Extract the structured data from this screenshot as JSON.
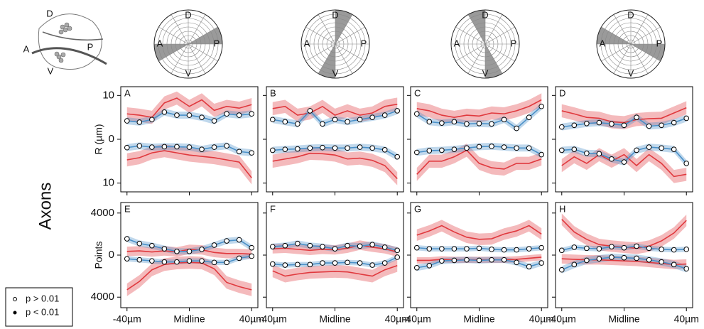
{
  "row_label": "Axons",
  "legend": [
    "p > 0.01",
    "p < 0.01"
  ],
  "inset": {
    "labels": [
      "D",
      "A",
      "P",
      "V"
    ]
  },
  "chart_data": [
    {
      "type": "polar",
      "labels": {
        "top": "D",
        "left": "A",
        "right": "P",
        "bottom": "V"
      },
      "shaded": [
        [
          0,
          30
        ],
        [
          180,
          210
        ]
      ],
      "color": "#9a9a9a"
    },
    {
      "type": "polar",
      "labels": {
        "top": "D",
        "left": "A",
        "right": "P",
        "bottom": "V"
      },
      "shaded": [
        [
          60,
          90
        ],
        [
          240,
          270
        ]
      ],
      "color": "#9a9a9a"
    },
    {
      "type": "polar",
      "labels": {
        "top": "D",
        "left": "A",
        "right": "P",
        "bottom": "V"
      },
      "shaded": [
        [
          90,
          120
        ],
        [
          270,
          300
        ]
      ],
      "color": "#9a9a9a"
    },
    {
      "type": "polar",
      "labels": {
        "top": "D",
        "left": "A",
        "right": "P",
        "bottom": "V"
      },
      "shaded": [
        [
          150,
          180
        ],
        [
          330,
          360
        ]
      ],
      "color": "#9a9a9a"
    },
    {
      "type": "line",
      "label": "A",
      "ylabel": "R (µm)",
      "ylim": [
        -12,
        12
      ],
      "yticks": [
        10,
        0,
        {
          "value": -10,
          "label": "10"
        }
      ],
      "xlim": [
        -44,
        44
      ],
      "x": [
        -40,
        -32,
        -24,
        -16,
        -8,
        0,
        8,
        16,
        24,
        32,
        40
      ],
      "series": [
        {
          "color": "#e0393e",
          "error": 1.5,
          "values": [
            5.8,
            5.5,
            5,
            8.3,
            9.4,
            7.5,
            9,
            6.6,
            7.5,
            7.1,
            7.9
          ]
        },
        {
          "color": "#4a90c8",
          "error": 0.8,
          "markers": true,
          "values": [
            4.2,
            3.9,
            4.5,
            6.2,
            5.5,
            5.5,
            5,
            4.2,
            5.8,
            5.5,
            5.8
          ]
        },
        {
          "color": "#e0393e",
          "error": 1.5,
          "values": [
            -4.7,
            -4.2,
            -3.1,
            -2.6,
            -3.1,
            -3.6,
            -3.9,
            -4.2,
            -4.7,
            -5.2,
            -8.8
          ]
        },
        {
          "color": "#4a90c8",
          "error": 0.8,
          "markers": true,
          "values": [
            -1.9,
            -1.5,
            -1.8,
            -1.7,
            -1.7,
            -1.8,
            -2.3,
            -1.8,
            -1.5,
            -2.8,
            -3.1
          ]
        }
      ]
    },
    {
      "type": "line",
      "label": "B",
      "ylim": [
        -12,
        12
      ],
      "xlim": [
        -44,
        44
      ],
      "x": [
        -40,
        -32,
        -24,
        -16,
        -8,
        0,
        8,
        16,
        24,
        32,
        40
      ],
      "series": [
        {
          "color": "#e0393e",
          "error": 1.5,
          "values": [
            7,
            7.5,
            5.5,
            6,
            7.5,
            5.5,
            6.5,
            5.5,
            6,
            7.5,
            8
          ]
        },
        {
          "color": "#4a90c8",
          "error": 0.8,
          "markers": true,
          "values": [
            4.5,
            4,
            3.5,
            6.5,
            3.5,
            4.5,
            4,
            4.5,
            5,
            5.5,
            6.5
          ]
        },
        {
          "color": "#e0393e",
          "error": 1.5,
          "values": [
            -5,
            -4.5,
            -4,
            -3.2,
            -3.3,
            -3.6,
            -4.5,
            -4.3,
            -4.8,
            -6,
            -9
          ]
        },
        {
          "color": "#4a90c8",
          "error": 0.8,
          "markers": true,
          "values": [
            -2.5,
            -2.3,
            -2.2,
            -2,
            -1.9,
            -2,
            -2,
            -1.8,
            -2,
            -2.4,
            -4
          ]
        }
      ]
    },
    {
      "type": "line",
      "label": "C",
      "ylim": [
        -12,
        12
      ],
      "xlim": [
        -44,
        44
      ],
      "x": [
        -40,
        -32,
        -24,
        -16,
        -8,
        0,
        8,
        16,
        24,
        32,
        40
      ],
      "series": [
        {
          "color": "#e0393e",
          "error": 1.5,
          "values": [
            7,
            6.5,
            5.5,
            5,
            5.5,
            5.3,
            6,
            5.8,
            6.5,
            7.5,
            9
          ]
        },
        {
          "color": "#4a90c8",
          "error": 0.8,
          "markers": true,
          "values": [
            5.8,
            4,
            3.7,
            4,
            3.5,
            3.6,
            3.5,
            4.5,
            2.5,
            5,
            7.5
          ]
        },
        {
          "color": "#e0393e",
          "error": 1.5,
          "values": [
            -8,
            -5,
            -5,
            -4,
            -2.5,
            -5.5,
            -6.5,
            -6.8,
            -5.5,
            -5.5,
            -4.5
          ]
        },
        {
          "color": "#4a90c8",
          "error": 0.8,
          "markers": true,
          "values": [
            -3,
            -2.6,
            -2.5,
            -2.3,
            -2,
            -1.7,
            -1.6,
            -1.8,
            -2,
            -2,
            -3.5
          ]
        }
      ]
    },
    {
      "type": "line",
      "label": "D",
      "ylim": [
        -12,
        12
      ],
      "xlim": [
        -44,
        44
      ],
      "x": [
        -40,
        -32,
        -24,
        -16,
        -8,
        0,
        8,
        16,
        24,
        32,
        40
      ],
      "series": [
        {
          "color": "#e0393e",
          "error": 1.5,
          "values": [
            6.5,
            5.8,
            5,
            4.8,
            4,
            3.8,
            4.5,
            4.7,
            4.8,
            6,
            7.2
          ]
        },
        {
          "color": "#4a90c8",
          "error": 0.8,
          "markers": true,
          "values": [
            2.8,
            3.2,
            3.6,
            3.8,
            3.5,
            3.2,
            5,
            3,
            3.2,
            3.8,
            4.8
          ]
        },
        {
          "color": "#e0393e",
          "error": 1.5,
          "values": [
            -6,
            -4,
            -5.5,
            -3.5,
            -5,
            -3.5,
            -6,
            -3.5,
            -5.5,
            -8.5,
            -8
          ]
        },
        {
          "color": "#4a90c8",
          "error": 0.8,
          "markers": true,
          "values": [
            -2.5,
            -2.3,
            -3.2,
            -3.3,
            -4.5,
            -5.2,
            -2.5,
            -1.8,
            -2,
            -2.3,
            -5.5
          ]
        }
      ]
    },
    {
      "type": "line",
      "label": "E",
      "ylabel": "Points",
      "ylim": [
        -5000,
        5000
      ],
      "yticks": [
        4000,
        0,
        {
          "value": -4000,
          "label": "4000"
        }
      ],
      "xlim": [
        -44,
        44
      ],
      "xticks": [
        {
          "value": -40,
          "label": "-40µm"
        },
        {
          "value": 0,
          "label": "Midline"
        },
        {
          "value": 40,
          "label": "40µm"
        }
      ],
      "x": [
        -40,
        -32,
        -24,
        -16,
        -8,
        0,
        8,
        16,
        24,
        32,
        40
      ],
      "series": [
        {
          "color": "#e0393e",
          "error": 450,
          "values": [
            350,
            400,
            300,
            400,
            300,
            550,
            500,
            250,
            150,
            150,
            100
          ]
        },
        {
          "color": "#4a90c8",
          "error": 300,
          "markers": true,
          "values": [
            1550,
            1100,
            900,
            600,
            350,
            350,
            550,
            950,
            1350,
            1450,
            700
          ]
        },
        {
          "color": "#e0393e",
          "error": 600,
          "values": [
            -3300,
            -2500,
            -1400,
            -900,
            -750,
            -700,
            -750,
            -1300,
            -2600,
            -3000,
            -3300
          ]
        },
        {
          "color": "#4a90c8",
          "error": 250,
          "markers": true,
          "values": [
            -350,
            -450,
            -550,
            -650,
            -650,
            -550,
            -550,
            -700,
            -700,
            -300,
            -100
          ]
        }
      ]
    },
    {
      "type": "line",
      "label": "F",
      "ylim": [
        -5000,
        5000
      ],
      "xlim": [
        -44,
        44
      ],
      "xticks": [
        {
          "value": -40,
          "label": "-40µm"
        },
        {
          "value": 0,
          "label": "Midline"
        },
        {
          "value": 40,
          "label": "40µm"
        }
      ],
      "x": [
        -40,
        -32,
        -24,
        -16,
        -8,
        0,
        8,
        16,
        24,
        32,
        40
      ],
      "series": [
        {
          "color": "#e0393e",
          "error": 450,
          "values": [
            600,
            650,
            550,
            450,
            550,
            500,
            650,
            950,
            750,
            600,
            300
          ]
        },
        {
          "color": "#4a90c8",
          "error": 300,
          "markers": true,
          "values": [
            800,
            900,
            1100,
            900,
            800,
            600,
            900,
            850,
            1000,
            750,
            450
          ]
        },
        {
          "color": "#e0393e",
          "error": 600,
          "values": [
            -1500,
            -2000,
            -1800,
            -1650,
            -1600,
            -1550,
            -1600,
            -1800,
            -2000,
            -1400,
            -1000
          ]
        },
        {
          "color": "#4a90c8",
          "error": 250,
          "markers": true,
          "values": [
            -850,
            -950,
            -900,
            -900,
            -750,
            -750,
            -700,
            -750,
            -950,
            -750,
            -200
          ]
        }
      ]
    },
    {
      "type": "line",
      "label": "G",
      "ylim": [
        -5000,
        5000
      ],
      "xlim": [
        -44,
        44
      ],
      "xticks": [
        {
          "value": -40,
          "label": "-40µm"
        },
        {
          "value": 0,
          "label": "Midline"
        },
        {
          "value": 40,
          "label": "40µm"
        }
      ],
      "x": [
        -40,
        -32,
        -24,
        -16,
        -8,
        0,
        8,
        16,
        24,
        32,
        40
      ],
      "series": [
        {
          "color": "#e0393e",
          "error": 550,
          "values": [
            1900,
            2300,
            2800,
            2200,
            1700,
            1500,
            1550,
            2000,
            2300,
            2800,
            2000
          ]
        },
        {
          "color": "#4a90c8",
          "error": 250,
          "markers": true,
          "values": [
            700,
            600,
            600,
            600,
            600,
            650,
            550,
            500,
            500,
            600,
            700
          ]
        },
        {
          "color": "#e0393e",
          "error": 300,
          "values": [
            -500,
            -500,
            -400,
            -450,
            -450,
            -450,
            -450,
            -450,
            -400,
            -300,
            -200
          ]
        },
        {
          "color": "#4a90c8",
          "error": 300,
          "markers": true,
          "values": [
            -1200,
            -1000,
            -550,
            -500,
            -450,
            -500,
            -450,
            -450,
            -700,
            -1100,
            -750
          ]
        }
      ]
    },
    {
      "type": "line",
      "label": "H",
      "ylim": [
        -5000,
        5000
      ],
      "xlim": [
        -44,
        44
      ],
      "xticks": [
        {
          "value": -40,
          "label": "-40µm"
        },
        {
          "value": 0,
          "label": "Midline"
        },
        {
          "value": 40,
          "label": "40µm"
        }
      ],
      "x": [
        -40,
        -32,
        -24,
        -16,
        -8,
        0,
        8,
        16,
        24,
        32,
        40
      ],
      "series": [
        {
          "color": "#e0393e",
          "error": 550,
          "values": [
            3400,
            2200,
            1500,
            1000,
            850,
            750,
            650,
            850,
            1350,
            2100,
            3300
          ]
        },
        {
          "color": "#4a90c8",
          "error": 250,
          "markers": true,
          "values": [
            450,
            750,
            650,
            600,
            800,
            700,
            850,
            650,
            550,
            500,
            550
          ]
        },
        {
          "color": "#e0393e",
          "error": 450,
          "values": [
            -350,
            -400,
            -450,
            -450,
            -500,
            -550,
            -600,
            -700,
            -800,
            -900,
            -850
          ]
        },
        {
          "color": "#4a90c8",
          "error": 350,
          "markers": true,
          "values": [
            -1400,
            -900,
            -500,
            -350,
            -200,
            -250,
            -300,
            -450,
            -650,
            -900,
            -1300
          ]
        }
      ]
    }
  ]
}
